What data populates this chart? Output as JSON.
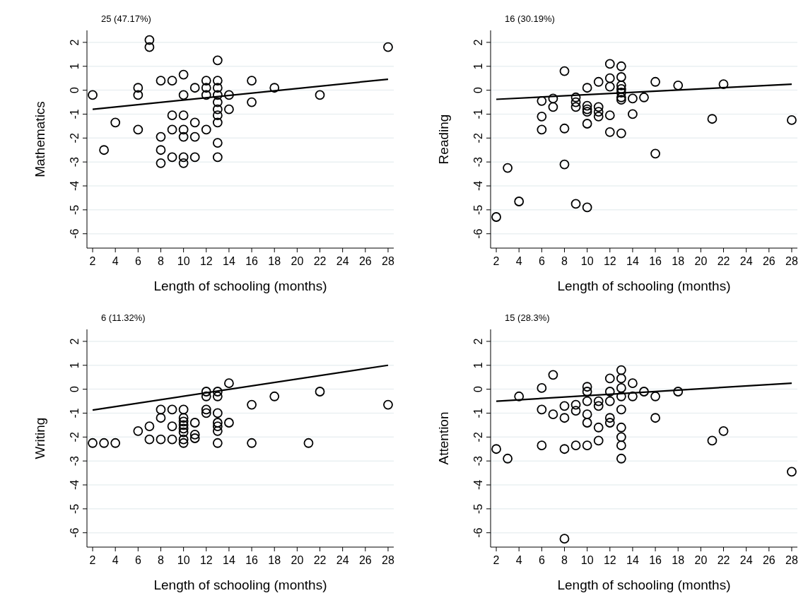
{
  "chart_data": [
    {
      "type": "scatter",
      "ylabel": "Mathematics",
      "xlabel": "Length of schooling (months)",
      "annotations": [
        "25 (47.17%)"
      ],
      "xlim": [
        1.5,
        28.5
      ],
      "ylim": [
        -6.6,
        2.5
      ],
      "xticks": [
        2,
        4,
        6,
        8,
        10,
        12,
        14,
        16,
        18,
        20,
        22,
        24,
        26,
        28
      ],
      "yticks": [
        -6,
        -5,
        -4,
        -3,
        -2,
        -1,
        0,
        1,
        2
      ],
      "grid": "y",
      "marker": "circle",
      "series": [
        {
          "type": "scatter",
          "color": "#000000",
          "x": [
            2,
            3,
            4,
            6,
            6,
            6,
            7,
            7,
            8,
            8,
            8,
            8,
            9,
            9,
            9,
            9,
            10,
            10,
            10,
            10,
            10,
            10,
            10,
            11,
            11,
            11,
            11,
            12,
            12,
            12,
            12,
            13,
            13,
            13,
            13,
            13,
            13,
            13,
            13,
            13,
            13,
            14,
            14,
            16,
            16,
            18,
            22,
            28
          ],
          "values": [
            -0.2,
            -2.5,
            -1.35,
            0.1,
            -0.2,
            -1.65,
            2.1,
            1.8,
            0.4,
            -1.95,
            -2.5,
            -3.05,
            0.4,
            -1.05,
            -1.65,
            -2.8,
            0.65,
            -0.2,
            -1.05,
            -1.65,
            -1.95,
            -2.8,
            -3.05,
            0.1,
            -1.35,
            -1.95,
            -2.8,
            0.4,
            0.1,
            -0.2,
            -1.65,
            1.25,
            0.4,
            0.1,
            -0.2,
            -0.5,
            -0.8,
            -1.05,
            -1.35,
            -2.2,
            -2.8,
            -0.2,
            -0.8,
            0.4,
            -0.5,
            0.1,
            -0.2,
            1.8
          ]
        },
        {
          "type": "line",
          "color": "#000000",
          "marker": "none",
          "x": [
            2,
            28
          ],
          "values": [
            -0.8,
            0.46
          ]
        }
      ]
    },
    {
      "type": "scatter",
      "ylabel": "Reading",
      "xlabel": "Length of schooling (months)",
      "annotations": [
        "16 (30.19%)"
      ],
      "xlim": [
        1.5,
        28.5
      ],
      "ylim": [
        -6.6,
        2.5
      ],
      "xticks": [
        2,
        4,
        6,
        8,
        10,
        12,
        14,
        16,
        18,
        20,
        22,
        24,
        26,
        28
      ],
      "yticks": [
        -6,
        -5,
        -4,
        -3,
        -2,
        -1,
        0,
        1,
        2
      ],
      "grid": "y",
      "marker": "circle",
      "series": [
        {
          "type": "scatter",
          "color": "#000000",
          "x": [
            2,
            3,
            4,
            6,
            6,
            6,
            7,
            7,
            8,
            8,
            8,
            9,
            9,
            9,
            9,
            10,
            10,
            10,
            10,
            10,
            10,
            11,
            11,
            11,
            11,
            12,
            12,
            12,
            12,
            12,
            13,
            13,
            13,
            13,
            13,
            13,
            13,
            13,
            14,
            14,
            15,
            16,
            16,
            18,
            21,
            22,
            28
          ],
          "values": [
            -5.3,
            -3.25,
            -4.65,
            -0.45,
            -1.1,
            -1.65,
            -0.35,
            -0.7,
            0.8,
            -1.6,
            -3.1,
            -0.3,
            -0.5,
            -0.7,
            -4.75,
            0.1,
            -0.65,
            -0.8,
            -0.9,
            -1.4,
            -4.9,
            0.35,
            -0.7,
            -0.9,
            -1.1,
            1.1,
            0.5,
            0.15,
            -1.05,
            -1.75,
            1.0,
            0.55,
            0.2,
            0.05,
            -0.1,
            -0.3,
            -0.4,
            -1.8,
            -0.35,
            -1.0,
            -0.3,
            0.35,
            -2.65,
            0.2,
            -1.2,
            0.25,
            -1.25
          ]
        },
        {
          "type": "line",
          "color": "#000000",
          "marker": "none",
          "x": [
            2,
            28
          ],
          "values": [
            -0.38,
            0.25
          ]
        }
      ]
    },
    {
      "type": "scatter",
      "ylabel": "Writing",
      "xlabel": "Length of schooling (months)",
      "annotations": [
        "6 (11.32%)"
      ],
      "xlim": [
        1.5,
        28.5
      ],
      "ylim": [
        -6.6,
        2.5
      ],
      "xticks": [
        2,
        4,
        6,
        8,
        10,
        12,
        14,
        16,
        18,
        20,
        22,
        24,
        26,
        28
      ],
      "yticks": [
        -6,
        -5,
        -4,
        -3,
        -2,
        -1,
        0,
        1,
        2
      ],
      "grid": "y",
      "marker": "circle",
      "series": [
        {
          "type": "scatter",
          "color": "#000000",
          "x": [
            2,
            3,
            4,
            6,
            7,
            7,
            8,
            8,
            8,
            9,
            9,
            9,
            10,
            10,
            10,
            10,
            10,
            10,
            10,
            10,
            11,
            11,
            11,
            12,
            12,
            12,
            12,
            13,
            13,
            13,
            13,
            13,
            13,
            13,
            14,
            14,
            16,
            16,
            18,
            21,
            22,
            28
          ],
          "values": [
            -2.25,
            -2.25,
            -2.25,
            -1.75,
            -1.55,
            -2.1,
            -0.85,
            -1.2,
            -2.1,
            -0.85,
            -1.55,
            -2.1,
            -0.85,
            -1.2,
            -1.35,
            -1.5,
            -1.65,
            -1.8,
            -2.1,
            -2.25,
            -1.4,
            -1.9,
            -2.05,
            -0.1,
            -0.3,
            -0.85,
            -1.0,
            -0.1,
            -0.3,
            -1.0,
            -1.4,
            -1.55,
            -1.75,
            -2.25,
            0.25,
            -1.4,
            -0.65,
            -2.25,
            -0.3,
            -2.25,
            -0.1,
            -0.65
          ]
        },
        {
          "type": "line",
          "color": "#000000",
          "marker": "none",
          "x": [
            2,
            28
          ],
          "values": [
            -0.87,
            1.0
          ]
        }
      ]
    },
    {
      "type": "scatter",
      "ylabel": "Attention",
      "xlabel": "Length of schooling (months)",
      "annotations": [
        "15 (28.3%)"
      ],
      "xlim": [
        1.5,
        28.5
      ],
      "ylim": [
        -6.6,
        2.5
      ],
      "xticks": [
        2,
        4,
        6,
        8,
        10,
        12,
        14,
        16,
        18,
        20,
        22,
        24,
        26,
        28
      ],
      "yticks": [
        -6,
        -5,
        -4,
        -3,
        -2,
        -1,
        0,
        1,
        2
      ],
      "grid": "y",
      "marker": "circle",
      "series": [
        {
          "type": "scatter",
          "color": "#000000",
          "x": [
            2,
            3,
            4,
            6,
            6,
            6,
            7,
            7,
            8,
            8,
            8,
            8,
            9,
            9,
            9,
            10,
            10,
            10,
            10,
            10,
            10,
            11,
            11,
            11,
            11,
            12,
            12,
            12,
            12,
            12,
            13,
            13,
            13,
            13,
            13,
            13,
            13,
            13,
            13,
            14,
            14,
            15,
            16,
            16,
            18,
            21,
            22,
            28
          ],
          "values": [
            -2.5,
            -2.9,
            -0.3,
            0.05,
            -0.85,
            -2.35,
            0.6,
            -1.05,
            -0.7,
            -1.2,
            -2.5,
            -6.25,
            -0.65,
            -0.9,
            -2.35,
            0.1,
            -0.1,
            -0.5,
            -1.05,
            -1.4,
            -2.35,
            -0.5,
            -0.7,
            -1.6,
            -2.15,
            0.45,
            -0.1,
            -0.5,
            -1.2,
            -1.4,
            0.8,
            0.45,
            0.05,
            -0.3,
            -0.85,
            -1.6,
            -2.0,
            -2.35,
            -2.9,
            0.25,
            -0.3,
            -0.1,
            -0.3,
            -1.2,
            -0.1,
            -2.15,
            -1.75,
            -3.45
          ]
        },
        {
          "type": "line",
          "color": "#000000",
          "marker": "none",
          "x": [
            2,
            28
          ],
          "values": [
            -0.5,
            0.25
          ]
        }
      ]
    }
  ]
}
